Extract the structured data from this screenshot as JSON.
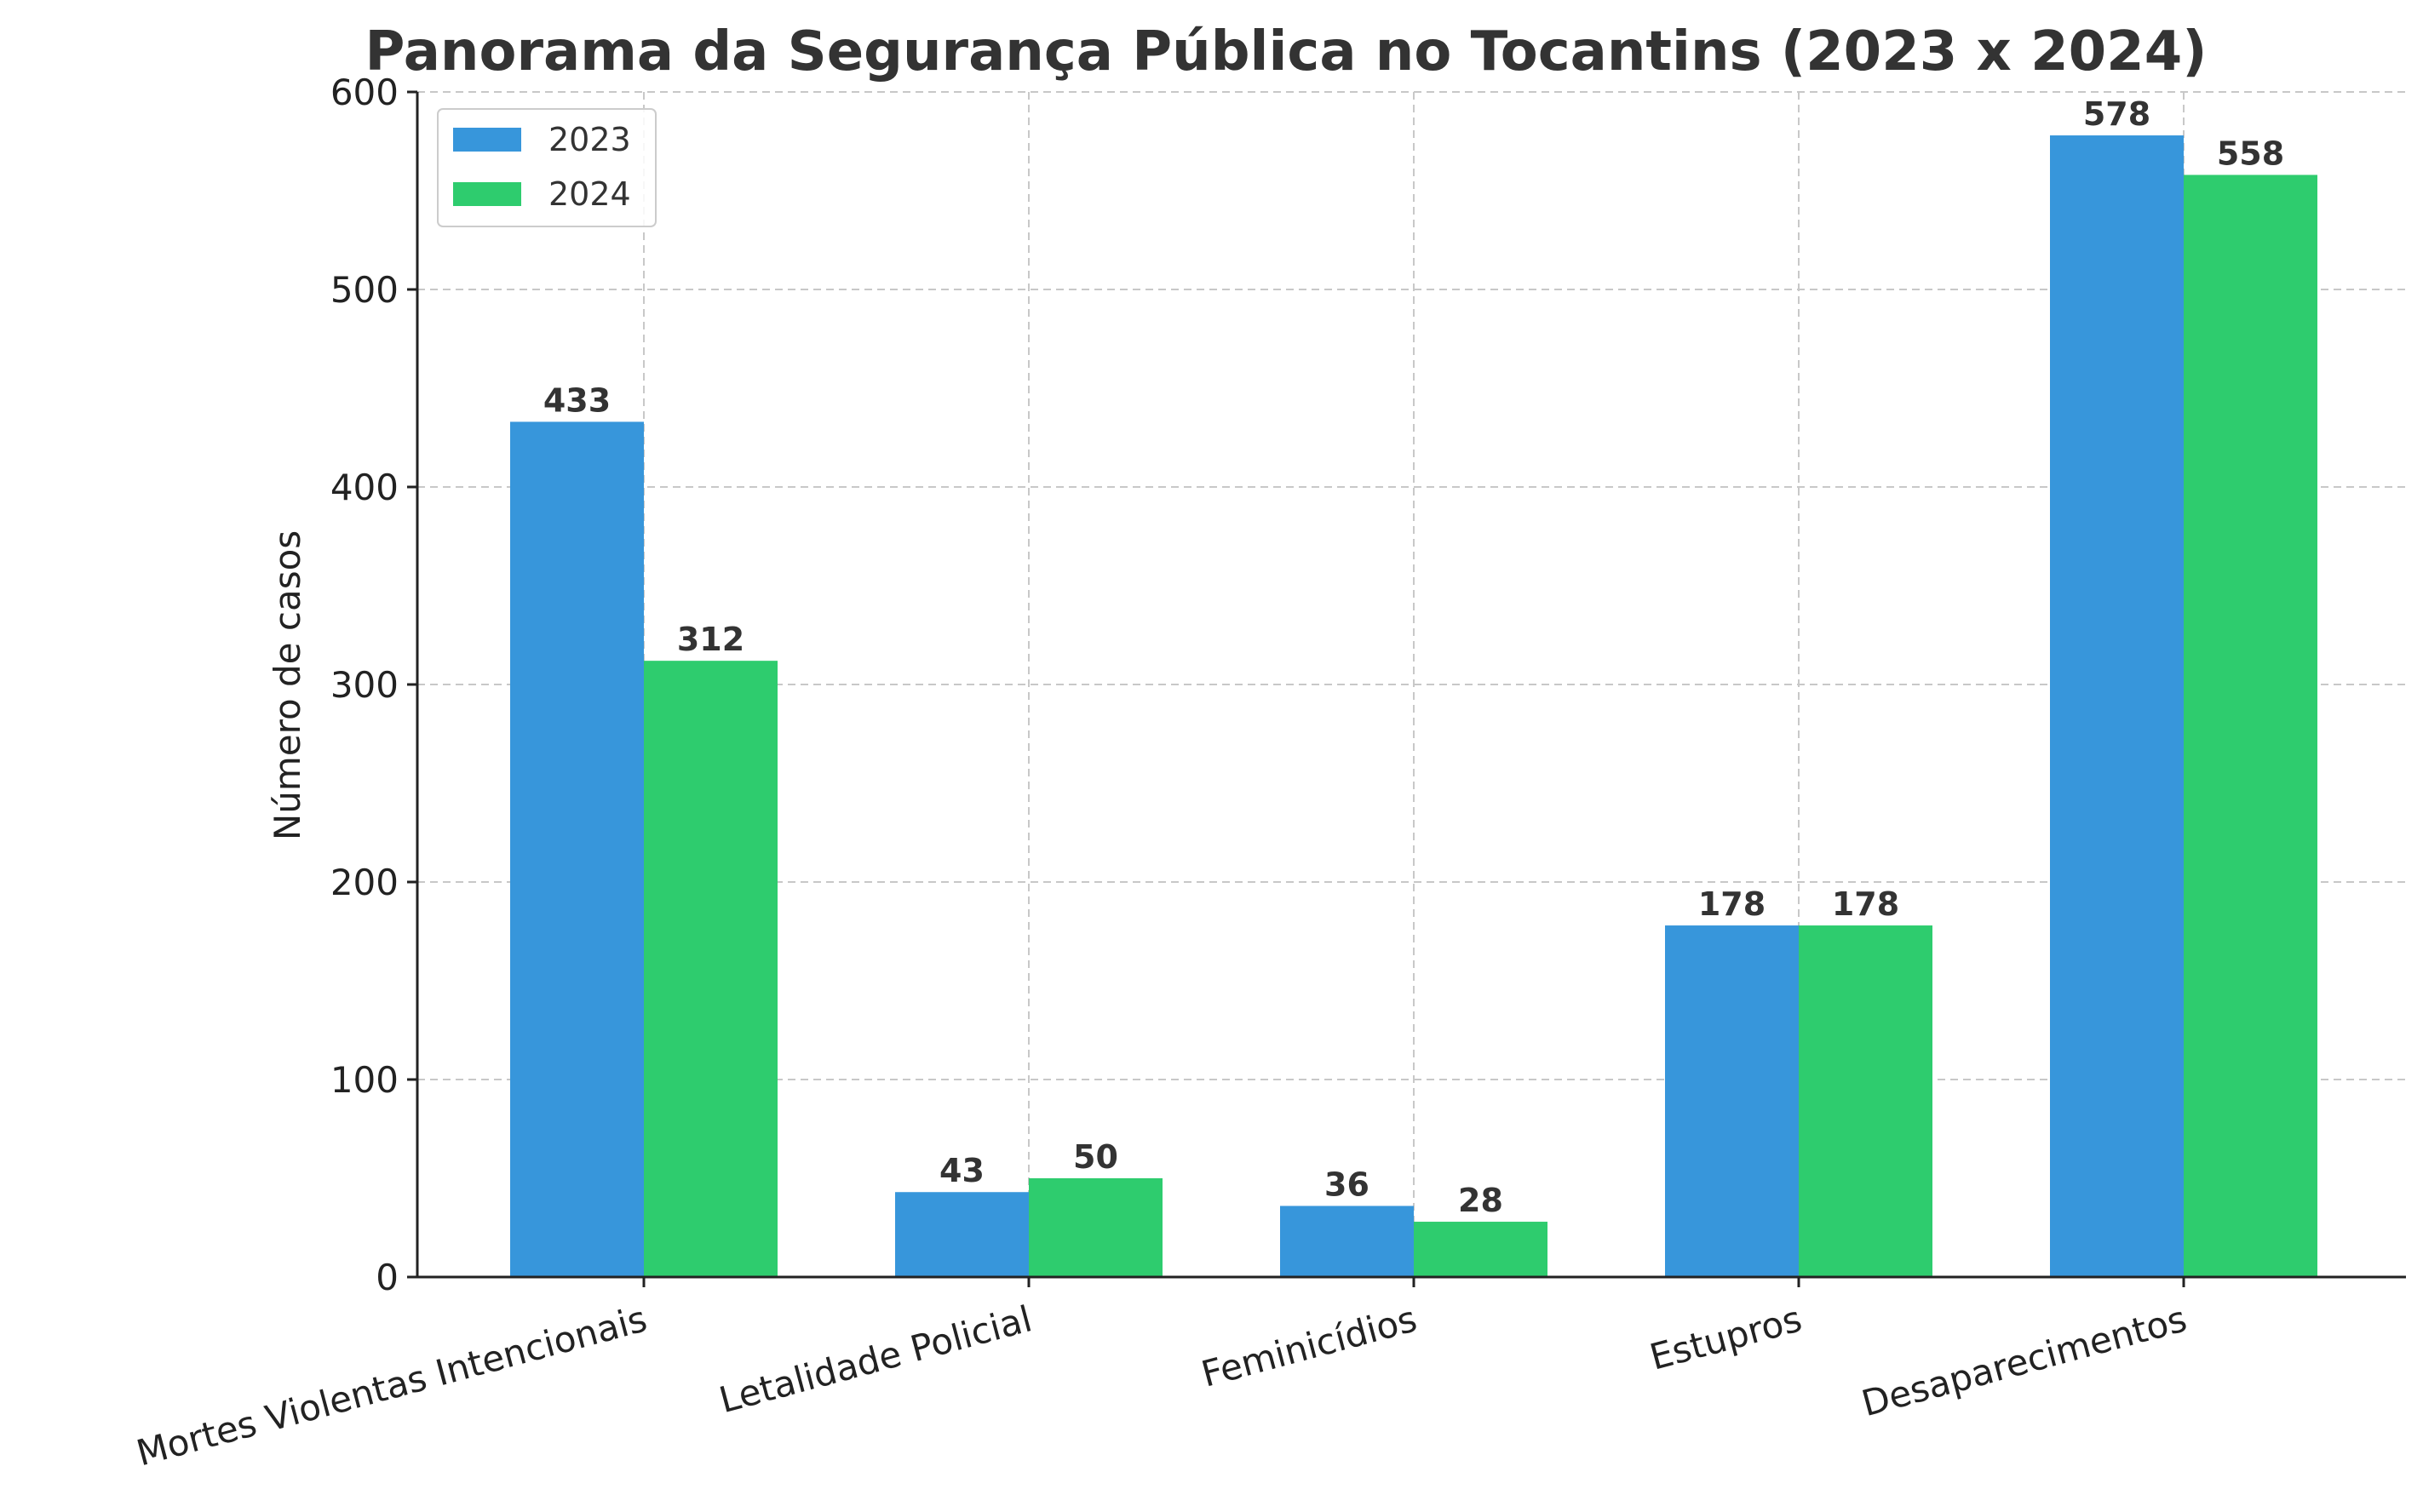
{
  "chart_data": {
    "type": "bar",
    "title": "Panorama da Segurança Pública no Tocantins (2023 x 2024)",
    "xlabel": "",
    "ylabel": "Número de casos",
    "ylim": [
      0,
      600
    ],
    "yticks": [
      0,
      100,
      200,
      300,
      400,
      500,
      600
    ],
    "grid": true,
    "legend_position": "top-left",
    "categories": [
      "Mortes Violentas Intencionais",
      "Letalidade Policial",
      "Feminicídios",
      "Estupros",
      "Desaparecimentos"
    ],
    "series": [
      {
        "name": "2023",
        "color": "#3796db",
        "values": [
          433,
          43,
          36,
          178,
          578
        ]
      },
      {
        "name": "2024",
        "color": "#2ecc6e",
        "values": [
          312,
          50,
          28,
          178,
          558
        ]
      }
    ]
  }
}
